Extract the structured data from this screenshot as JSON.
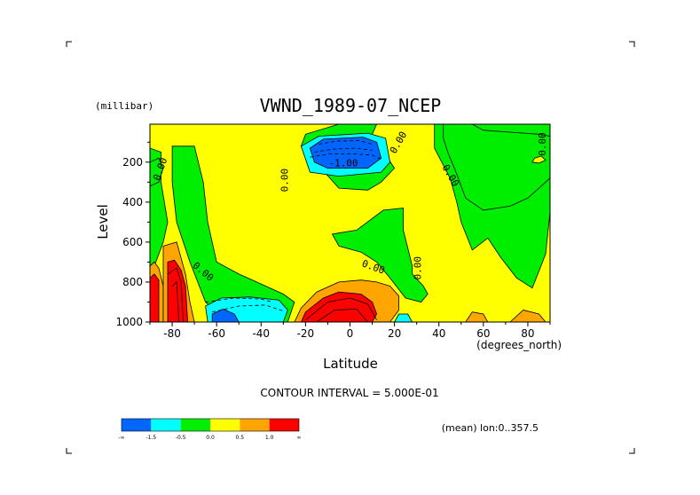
{
  "chart_data": {
    "type": "heatmap",
    "title": "VWND_1989-07_NCEP",
    "xlabel": "Latitude",
    "ylabel": "Level",
    "y_units": "(millibar)",
    "x_units": "(degrees_north)",
    "xlim": [
      -90,
      90
    ],
    "ylim": [
      1000,
      10
    ],
    "x_ticks": [
      -80,
      -60,
      -40,
      -20,
      0,
      20,
      40,
      60,
      80
    ],
    "y_ticks": [
      200,
      400,
      600,
      800,
      1000
    ],
    "contour_interval_label": "CONTOUR INTERVAL = 5.000E-01",
    "mean_label": "(mean) lon:0..357.5",
    "contour_labels": [
      {
        "text": "0.00",
        "x": -84,
        "y": 240,
        "angle": -70
      },
      {
        "text": "0.00",
        "x": -28,
        "y": 290,
        "angle": -90
      },
      {
        "text": "-1.00",
        "x": -3,
        "y": 220,
        "angle": 0
      },
      {
        "text": "0.00",
        "x": 23,
        "y": 110,
        "angle": -60
      },
      {
        "text": "0.00",
        "x": 44,
        "y": 275,
        "angle": 60
      },
      {
        "text": "0.00",
        "x": 88,
        "y": 110,
        "angle": -90
      },
      {
        "text": "0.00",
        "x": 10,
        "y": 740,
        "angle": 20
      },
      {
        "text": "0.00",
        "x": 32,
        "y": 730,
        "angle": -90
      },
      {
        "text": "0.00",
        "x": -67,
        "y": 760,
        "angle": 40
      }
    ],
    "legend": {
      "colors": [
        "#0066ff",
        "#00ffff",
        "#00ee00",
        "#ffff00",
        "#ffa500",
        "#ff0000"
      ],
      "labels": [
        "-∞",
        "-1.5",
        "-0.5",
        "0.0",
        "0.5",
        "1.0",
        "∞"
      ]
    },
    "regions": [
      {
        "name": "green-base",
        "color": "#00ee00",
        "points": [
          [
            -90,
            10
          ],
          [
            90,
            10
          ],
          [
            90,
            1000
          ],
          [
            -90,
            1000
          ]
        ]
      },
      {
        "name": "yellow-main",
        "color": "#ffff00",
        "points": [
          [
            -87,
            10
          ],
          [
            -5,
            10
          ],
          [
            -20,
            60
          ],
          [
            -22,
            120
          ],
          [
            -5,
            330
          ],
          [
            8,
            340
          ],
          [
            14,
            300
          ],
          [
            20,
            230
          ],
          [
            10,
            60
          ],
          [
            12,
            10
          ],
          [
            38,
            10
          ],
          [
            38,
            130
          ],
          [
            45,
            280
          ],
          [
            48,
            400
          ],
          [
            50,
            500
          ],
          [
            55,
            640
          ],
          [
            62,
            580
          ],
          [
            68,
            680
          ],
          [
            75,
            780
          ],
          [
            82,
            830
          ],
          [
            88,
            660
          ],
          [
            90,
            450
          ],
          [
            90,
            1000
          ],
          [
            -90,
            1000
          ],
          [
            -90,
            780
          ],
          [
            -84,
            600
          ],
          [
            -82,
            500
          ],
          [
            -85,
            300
          ],
          [
            -85,
            150
          ],
          [
            -90,
            130
          ],
          [
            -90,
            10
          ]
        ]
      },
      {
        "name": "green-tongue",
        "color": "#00ee00",
        "points": [
          [
            -80,
            120
          ],
          [
            -70,
            120
          ],
          [
            -66,
            300
          ],
          [
            -64,
            500
          ],
          [
            -60,
            700
          ],
          [
            -50,
            760
          ],
          [
            -42,
            800
          ],
          [
            -30,
            860
          ],
          [
            -25,
            900
          ],
          [
            -28,
            1000
          ],
          [
            -55,
            1000
          ],
          [
            -65,
            900
          ],
          [
            -72,
            700
          ],
          [
            -78,
            500
          ],
          [
            -80,
            300
          ]
        ]
      },
      {
        "name": "green-left-upper",
        "color": "#00ee00",
        "points": [
          [
            -90,
            200
          ],
          [
            -86,
            180
          ],
          [
            -84,
            230
          ],
          [
            -86,
            300
          ],
          [
            -90,
            320
          ]
        ]
      },
      {
        "name": "green-mid",
        "color": "#00ee00",
        "points": [
          [
            -8,
            560
          ],
          [
            3,
            540
          ],
          [
            15,
            440
          ],
          [
            24,
            430
          ],
          [
            24,
            540
          ],
          [
            28,
            720
          ],
          [
            28,
            760
          ],
          [
            33,
            820
          ],
          [
            35,
            860
          ],
          [
            32,
            900
          ],
          [
            25,
            880
          ],
          [
            18,
            780
          ],
          [
            12,
            700
          ],
          [
            5,
            650
          ],
          [
            -5,
            620
          ]
        ]
      },
      {
        "name": "green-right",
        "color": "#00ee00",
        "points": [
          [
            42,
            10
          ],
          [
            55,
            10
          ],
          [
            60,
            40
          ],
          [
            72,
            50
          ],
          [
            85,
            60
          ],
          [
            90,
            70
          ],
          [
            90,
            280
          ],
          [
            85,
            330
          ],
          [
            80,
            380
          ],
          [
            72,
            420
          ],
          [
            60,
            440
          ],
          [
            52,
            380
          ],
          [
            48,
            260
          ],
          [
            44,
            150
          ],
          [
            42,
            80
          ]
        ]
      },
      {
        "name": "yellow-right-dot",
        "color": "#ffff00",
        "points": [
          [
            83,
            180
          ],
          [
            86,
            170
          ],
          [
            88,
            190
          ],
          [
            85,
            205
          ],
          [
            82,
            200
          ]
        ]
      },
      {
        "name": "orange-left",
        "color": "#ffa500",
        "points": [
          [
            -90,
            720
          ],
          [
            -88,
            700
          ],
          [
            -86,
            730
          ],
          [
            -84,
            820
          ],
          [
            -84,
            1000
          ],
          [
            -90,
            1000
          ]
        ]
      },
      {
        "name": "orange-left2",
        "color": "#ffa500",
        "points": [
          [
            -84,
            620
          ],
          [
            -78,
            600
          ],
          [
            -76,
            680
          ],
          [
            -74,
            760
          ],
          [
            -72,
            900
          ],
          [
            -70,
            1000
          ],
          [
            -84,
            1000
          ]
        ]
      },
      {
        "name": "red-left",
        "color": "#ff0000",
        "points": [
          [
            -90,
            780
          ],
          [
            -88,
            760
          ],
          [
            -86,
            790
          ],
          [
            -86,
            1000
          ],
          [
            -90,
            1000
          ]
        ]
      },
      {
        "name": "red-left2",
        "color": "#ff0000",
        "points": [
          [
            -82,
            700
          ],
          [
            -79,
            690
          ],
          [
            -76,
            740
          ],
          [
            -74,
            820
          ],
          [
            -73,
            1000
          ],
          [
            -82,
            1000
          ]
        ]
      },
      {
        "name": "cyan-south",
        "color": "#00ffff",
        "points": [
          [
            -65,
            920
          ],
          [
            -58,
            880
          ],
          [
            -45,
            875
          ],
          [
            -32,
            890
          ],
          [
            -28,
            940
          ],
          [
            -30,
            1000
          ],
          [
            -64,
            1000
          ]
        ]
      },
      {
        "name": "blue-south",
        "color": "#0066ff",
        "points": [
          [
            -62,
            960
          ],
          [
            -57,
            935
          ],
          [
            -52,
            960
          ],
          [
            -50,
            1000
          ],
          [
            -62,
            1000
          ]
        ]
      },
      {
        "name": "orange-center",
        "color": "#ffa500",
        "points": [
          [
            -25,
            1000
          ],
          [
            -22,
            930
          ],
          [
            -15,
            850
          ],
          [
            -5,
            800
          ],
          [
            5,
            790
          ],
          [
            12,
            800
          ],
          [
            18,
            820
          ],
          [
            22,
            870
          ],
          [
            22,
            940
          ],
          [
            18,
            1000
          ]
        ]
      },
      {
        "name": "red-center",
        "color": "#ff0000",
        "points": [
          [
            -22,
            1000
          ],
          [
            -20,
            950
          ],
          [
            -12,
            880
          ],
          [
            -5,
            850
          ],
          [
            5,
            860
          ],
          [
            10,
            900
          ],
          [
            12,
            960
          ],
          [
            10,
            1000
          ]
        ]
      },
      {
        "name": "cyan-equator",
        "color": "#00ffff",
        "points": [
          [
            20,
            1000
          ],
          [
            22,
            960
          ],
          [
            26,
            960
          ],
          [
            28,
            1000
          ]
        ]
      },
      {
        "name": "cyan-upper",
        "color": "#00ffff",
        "points": [
          [
            -22,
            120
          ],
          [
            -14,
            70
          ],
          [
            8,
            55
          ],
          [
            16,
            80
          ],
          [
            18,
            200
          ],
          [
            14,
            250
          ],
          [
            -5,
            270
          ],
          [
            -18,
            250
          ]
        ]
      },
      {
        "name": "blue-upper",
        "color": "#0066ff",
        "points": [
          [
            -18,
            130
          ],
          [
            -12,
            85
          ],
          [
            6,
            75
          ],
          [
            12,
            100
          ],
          [
            14,
            180
          ],
          [
            8,
            230
          ],
          [
            -10,
            230
          ],
          [
            -16,
            200
          ]
        ]
      },
      {
        "name": "orange-right1",
        "color": "#ffa500",
        "points": [
          [
            52,
            1000
          ],
          [
            55,
            950
          ],
          [
            60,
            960
          ],
          [
            62,
            1000
          ]
        ]
      },
      {
        "name": "orange-right2",
        "color": "#ffa500",
        "points": [
          [
            72,
            1000
          ],
          [
            78,
            940
          ],
          [
            85,
            960
          ],
          [
            88,
            1000
          ]
        ]
      }
    ],
    "dashed_contours": [
      [
        [
          -18,
          175
        ],
        [
          -10,
          160
        ],
        [
          0,
          158
        ],
        [
          10,
          165
        ],
        [
          14,
          185
        ]
      ],
      [
        [
          -16,
          150
        ],
        [
          -8,
          135
        ],
        [
          2,
          130
        ],
        [
          10,
          140
        ]
      ],
      [
        [
          -14,
          110
        ],
        [
          -6,
          95
        ],
        [
          4,
          92
        ],
        [
          10,
          110
        ]
      ],
      [
        [
          -62,
          950
        ],
        [
          -50,
          920
        ],
        [
          -38,
          915
        ],
        [
          -30,
          945
        ]
      ],
      [
        [
          -65,
          900
        ],
        [
          -52,
          880
        ],
        [
          -40,
          885
        ],
        [
          -35,
          900
        ]
      ]
    ],
    "solid_contours": [
      [
        [
          -20,
          990
        ],
        [
          -10,
          900
        ],
        [
          0,
          880
        ],
        [
          8,
          910
        ],
        [
          12,
          990
        ]
      ],
      [
        [
          -15,
          1000
        ],
        [
          -7,
          940
        ],
        [
          3,
          935
        ],
        [
          8,
          1000
        ]
      ],
      [
        [
          -82,
          760
        ],
        [
          -78,
          730
        ],
        [
          -76,
          800
        ],
        [
          -75,
          1000
        ]
      ],
      [
        [
          -80,
          820
        ],
        [
          -78,
          800
        ],
        [
          -77,
          1000
        ]
      ]
    ]
  }
}
